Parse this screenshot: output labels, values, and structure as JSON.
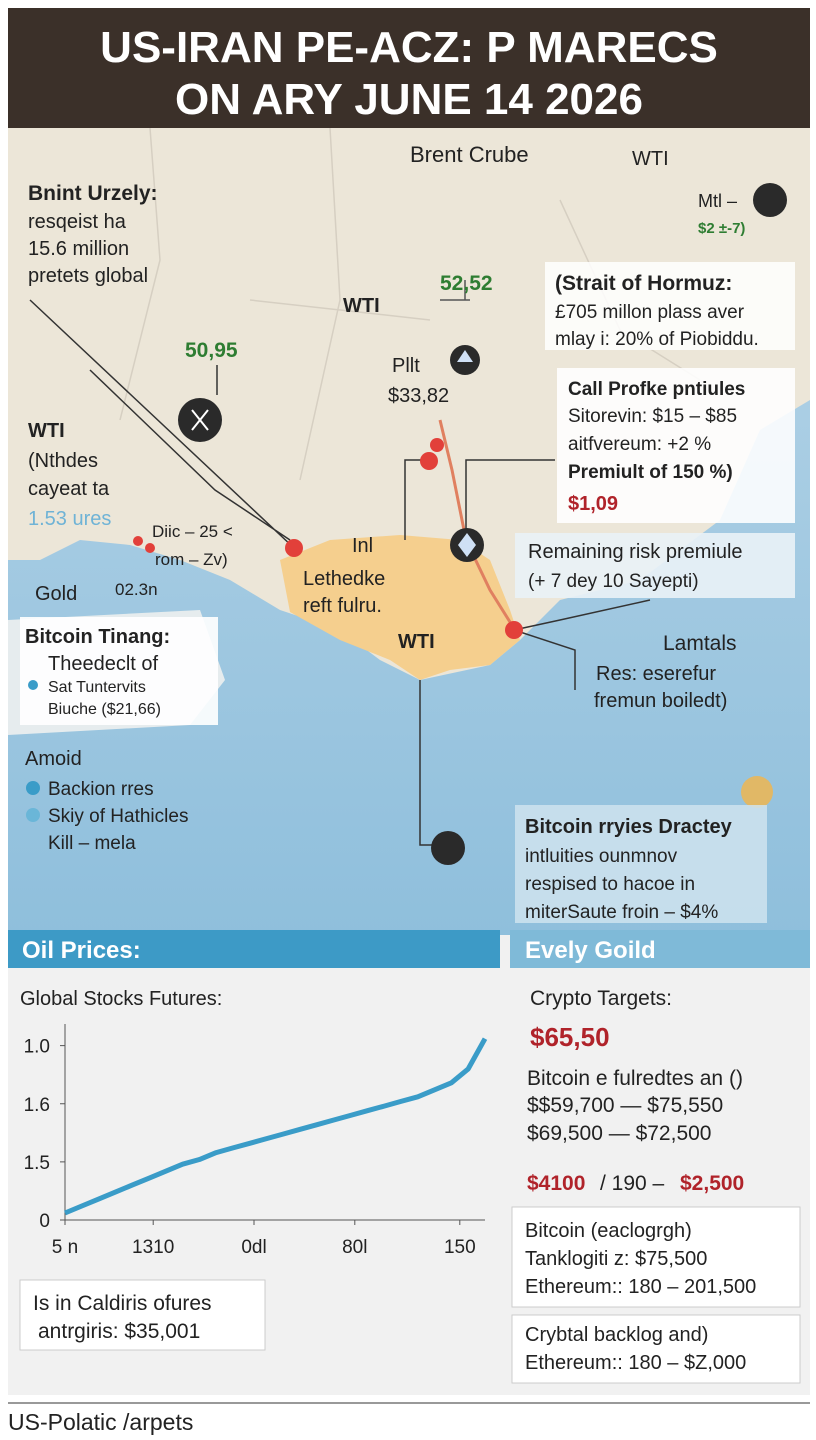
{
  "title": {
    "line1": "US-IRAN PE-ACZ: P MARECS",
    "line2": "ON ARY JUNE 14 2026"
  },
  "map": {
    "brent_crube": "Brent Crube",
    "wti_top": "WTI",
    "mtl": [
      "Mtl –",
      "$2 ±-7)"
    ],
    "bnint": [
      "Bnint Urzely:",
      "resqeist ha",
      "15.6 million",
      "pretets global"
    ],
    "price_1": "50,95",
    "price_2": "52,52",
    "wti_mid": "WTI",
    "pllt": [
      "Pllt",
      "$33,82"
    ],
    "strait": [
      "(Strait of Hormuz:",
      "£705 millon plass aver",
      "mlay i: 20% of Ρiobiddu."
    ],
    "call_profile": [
      "Call Profke pntiules",
      "Sitorevin: $15 – $85",
      "aitfvereum: +2 %",
      "Premiult of 150 %)"
    ],
    "call_price": "$1,09",
    "wti_left": [
      "WTI",
      "(Nthdes",
      "cayeat ta",
      "1.53 ures"
    ],
    "diic": [
      "Diic – 25 <",
      "rom – Zv)"
    ],
    "reading": "02.3n",
    "gold": "Gold",
    "inl": "Inl",
    "lethedke": [
      "Lethedke",
      "reft fulru."
    ],
    "wti_region": "WTI",
    "remaining": [
      "Remaining risk premiule",
      "(+ 7 dey 10 Sayepti)"
    ],
    "lamtals": "Lamtals",
    "res": [
      "Res: eserefur",
      "fremun boiledt)"
    ],
    "bitcoin_tinang": {
      "title": "Bitcoin Tinang:",
      "items": [
        "Theedeclt of",
        "Sat Tuntervits",
        "Biuche ($21,66)"
      ]
    },
    "amoid": {
      "title": "Amoid",
      "items": [
        "Backion rres",
        "Skiy of Hathicles",
        "Kill – mela"
      ]
    },
    "bitcoin_box": [
      "Bitcoin rryies Dractey",
      "intluities ounmnov",
      "respised to hacoe in",
      "miterSaute froin – $4%"
    ]
  },
  "panels": {
    "left_header": "Oil Prices:",
    "right_header": "Evely Goild",
    "left_box": [
      "Is in Caldiris ofures",
      "antrgiris: $35,001"
    ],
    "crypto": {
      "title": "Crypto Targets:",
      "price": "$65,50",
      "lines": [
        "Bitcoin e fulredtes an ()",
        "$$59,700 — $75,550",
        "$69,500 — $72,500"
      ],
      "target": [
        "$4100",
        "/ 190 –",
        "$2,500"
      ]
    },
    "box_1": [
      "Bitcoin (eaclogrgh)",
      "Tanklogiti z: $75,500",
      "Ethereum:: 180 – 201,500"
    ],
    "box_2": [
      "Crybtal backlog and)",
      "Ethereum:: 180 – $Z,000"
    ]
  },
  "chart_data": {
    "type": "line",
    "title": "Global Stocks Futures:",
    "color": "#3a9cc8",
    "x": [
      0,
      4,
      8,
      12,
      16,
      20,
      24,
      28,
      32,
      36,
      40,
      44,
      48,
      52,
      56,
      60,
      64,
      68,
      72,
      76,
      80,
      84,
      88,
      92,
      96,
      100
    ],
    "values": [
      0.03,
      0.06,
      0.09,
      0.12,
      0.15,
      0.18,
      0.21,
      0.24,
      0.26,
      0.29,
      0.31,
      0.33,
      0.35,
      0.37,
      0.39,
      0.41,
      0.43,
      0.45,
      0.47,
      0.49,
      0.51,
      0.53,
      0.56,
      0.59,
      0.65,
      0.78
    ],
    "xlim": [
      0,
      100
    ],
    "ylim": [
      0,
      0.8
    ],
    "xticks": [
      {
        "value": 0,
        "label": "5 n"
      },
      {
        "value": 21,
        "label": "1310"
      },
      {
        "value": 45,
        "label": "0dl"
      },
      {
        "value": 69,
        "label": "80l"
      },
      {
        "value": 94,
        "label": "150"
      }
    ],
    "yticks": [
      0,
      {
        "value": 0.25,
        "label": "1.5"
      },
      {
        "value": 0.5,
        "label": "1.6"
      },
      {
        "value": 0.75,
        "label": "1.0"
      }
    ]
  },
  "footer": "US-Polatic /arpets"
}
